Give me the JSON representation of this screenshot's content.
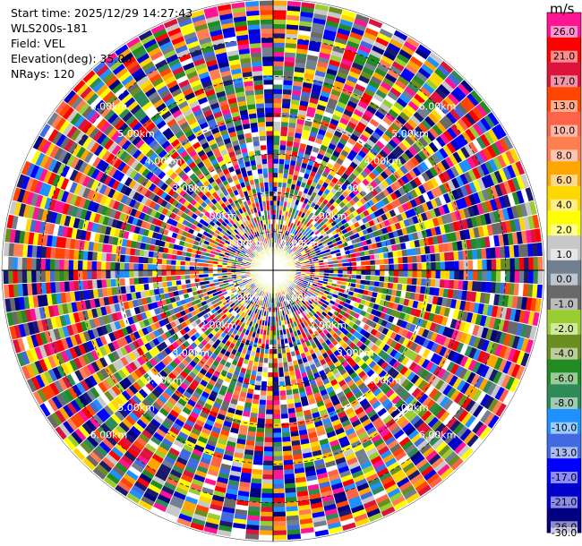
{
  "header": {
    "start_time": "Start time: 2025/12/29 14:27:43",
    "station": "WLS200s-181",
    "field": "Field: VEL",
    "elevation": "Elevation(deg): 35.00",
    "nrays": "NRays: 120"
  },
  "chart_data": {
    "type": "heatmap",
    "projection": "polar-ppi",
    "field": "VEL",
    "units": "m/s",
    "nrays": 120,
    "elevation_deg": 35.0,
    "range_rings_km": [
      1.0,
      2.0,
      3.0,
      4.0,
      5.0,
      6.0
    ],
    "range_ring_labels": [
      "1.00km",
      "2.00km",
      "3.00km",
      "4.00km",
      "5.00km",
      "6.00km"
    ],
    "max_range_km": 7.0,
    "colorbar": {
      "ticks": [
        "26.0",
        "21.0",
        "17.0",
        "13.0",
        "10.0",
        "8.0",
        "6.0",
        "4.0",
        "2.0",
        "1.0",
        "0.0",
        "-1.0",
        "-2.0",
        "-4.0",
        "-6.0",
        "-8.0",
        "-10.0",
        "-13.0",
        "-17.0",
        "-21.0",
        "-26.0",
        "-30.0"
      ],
      "colors": [
        "#ff1493",
        "#ff0000",
        "#dc143c",
        "#ff4500",
        "#ff6347",
        "#ff7f50",
        "#ffa500",
        "#ffd700",
        "#ffff00",
        "#c8c8c8",
        "#708090",
        "#696969",
        "#9acd32",
        "#6b8e23",
        "#228b22",
        "#2e8b57",
        "#1e90ff",
        "#4169e1",
        "#0000ff",
        "#0000cd",
        "#000080",
        "#191970"
      ]
    }
  }
}
